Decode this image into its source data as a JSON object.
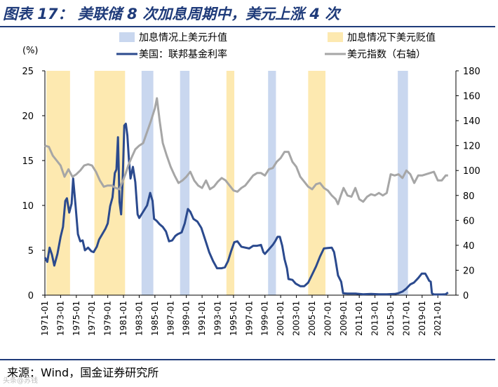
{
  "title": "图表 17： 美联储 8 次加息周期中，美元上涨 4 次",
  "source": "来源：Wind，国金证券研究所",
  "watermark": "头条@苏钱",
  "colors": {
    "title": "#1f3b7a",
    "rate": "#2b4a8e",
    "dxy": "#a6a6a6",
    "band_up": "#c9d7ef",
    "band_down": "#fde9b0"
  },
  "chart_data": {
    "type": "line",
    "left_unit_label": "(%)",
    "y_left": {
      "min": 0,
      "max": 25,
      "ticks": [
        0,
        5,
        10,
        15,
        20,
        25
      ]
    },
    "y_right": {
      "min": 0,
      "max": 180,
      "ticks": [
        0,
        20,
        40,
        60,
        80,
        100,
        120,
        140,
        160,
        180
      ]
    },
    "x_range": [
      1971.0,
      2023.3
    ],
    "x_tick_labels": [
      "1971-01",
      "1973-01",
      "1975-01",
      "1977-01",
      "1979-01",
      "1981-01",
      "1983-01",
      "1985-01",
      "1987-01",
      "1989-01",
      "1991-01",
      "1993-01",
      "1995-01",
      "1997-01",
      "1999-01",
      "2001-01",
      "2003-01",
      "2005-01",
      "2007-01",
      "2009-01",
      "2011-01",
      "2013-01",
      "2015-01",
      "2017-01",
      "2019-01",
      "2021-01"
    ],
    "legend": [
      {
        "key": "band_up",
        "label": "加息情况上美元升值",
        "kind": "band"
      },
      {
        "key": "band_down",
        "label": "加息情况下美元贬值",
        "kind": "band"
      },
      {
        "key": "rate",
        "label": "美国：联邦基金利率",
        "kind": "line"
      },
      {
        "key": "dxy",
        "label": "美元指数（右轴）",
        "kind": "line"
      }
    ],
    "bands_up": [
      [
        1983.3,
        1984.8
      ],
      [
        1988.2,
        1989.4
      ],
      [
        1999.4,
        2000.4
      ],
      [
        2015.9,
        2017.2
      ]
    ],
    "bands_down": [
      [
        1971.2,
        1974.2
      ],
      [
        1977.3,
        1981.2
      ],
      [
        1994.1,
        1995.1
      ],
      [
        2004.5,
        2006.7
      ]
    ],
    "series": [
      {
        "name": "美国：联邦基金利率",
        "axis": "left",
        "x": [
          1971.0,
          1971.3,
          1971.6,
          1971.9,
          1972.2,
          1972.6,
          1973.0,
          1973.3,
          1973.6,
          1973.8,
          1974.1,
          1974.4,
          1974.6,
          1974.9,
          1975.2,
          1975.5,
          1975.8,
          1976.1,
          1976.5,
          1976.9,
          1977.2,
          1977.6,
          1977.9,
          1978.3,
          1978.7,
          1979.0,
          1979.3,
          1979.6,
          1979.9,
          1980.1,
          1980.3,
          1980.5,
          1980.7,
          1980.9,
          1981.1,
          1981.3,
          1981.5,
          1981.7,
          1981.9,
          1982.2,
          1982.5,
          1982.8,
          1983.0,
          1983.5,
          1984.0,
          1984.4,
          1984.7,
          1984.9,
          1985.2,
          1985.6,
          1986.0,
          1986.4,
          1986.8,
          1987.2,
          1987.6,
          1987.9,
          1988.4,
          1988.8,
          1989.2,
          1989.5,
          1989.9,
          1990.4,
          1990.9,
          1991.5,
          1991.9,
          1992.4,
          1992.9,
          1993.5,
          1993.9,
          1994.3,
          1994.7,
          1995.1,
          1995.5,
          1996.0,
          1996.5,
          1997.0,
          1997.5,
          1998.0,
          1998.5,
          1998.8,
          1999.0,
          1999.5,
          2000.0,
          2000.3,
          2000.6,
          2000.9,
          2001.2,
          2001.5,
          2001.8,
          2002.0,
          2002.5,
          2002.9,
          2003.5,
          2004.0,
          2004.5,
          2005.0,
          2005.5,
          2006.0,
          2006.5,
          2007.0,
          2007.5,
          2007.8,
          2008.0,
          2008.3,
          2008.7,
          2008.95,
          2009.5,
          2010.5,
          2011.5,
          2012.5,
          2013.5,
          2014.5,
          2015.5,
          2015.95,
          2016.5,
          2016.95,
          2017.5,
          2017.95,
          2018.5,
          2018.95,
          2019.4,
          2019.6,
          2019.9,
          2020.1,
          2020.25,
          2020.5,
          2021.5,
          2022.0,
          2022.3
        ],
        "y": [
          4.2,
          3.7,
          5.3,
          4.5,
          3.3,
          4.6,
          6.5,
          7.6,
          10.5,
          10.8,
          9.2,
          10.2,
          13.0,
          10.0,
          6.8,
          6.0,
          6.1,
          5.0,
          5.3,
          4.9,
          4.8,
          5.4,
          6.2,
          6.8,
          7.4,
          8.0,
          9.9,
          10.9,
          13.6,
          14.0,
          17.6,
          10.4,
          9.0,
          12.8,
          18.9,
          19.1,
          17.8,
          15.0,
          13.0,
          14.3,
          12.6,
          9.0,
          8.6,
          9.3,
          10.0,
          11.4,
          10.5,
          8.5,
          8.3,
          7.9,
          7.6,
          7.1,
          6.0,
          6.1,
          6.6,
          6.8,
          7.0,
          8.0,
          9.6,
          9.3,
          8.5,
          8.2,
          7.5,
          5.9,
          4.8,
          3.8,
          3.0,
          3.0,
          3.1,
          3.8,
          4.9,
          5.9,
          6.0,
          5.4,
          5.3,
          5.2,
          5.5,
          5.5,
          5.6,
          4.8,
          4.6,
          5.1,
          5.6,
          6.0,
          6.5,
          6.5,
          5.5,
          4.0,
          3.0,
          1.8,
          1.7,
          1.3,
          1.0,
          1.0,
          1.4,
          2.3,
          3.2,
          4.3,
          5.2,
          5.25,
          5.3,
          4.8,
          3.8,
          2.2,
          1.5,
          0.2,
          0.18,
          0.18,
          0.1,
          0.14,
          0.1,
          0.09,
          0.13,
          0.2,
          0.4,
          0.7,
          1.2,
          1.4,
          1.9,
          2.4,
          2.4,
          2.1,
          1.6,
          1.5,
          0.2,
          0.08,
          0.08,
          0.1,
          0.3
        ]
      },
      {
        "name": "美元指数（右轴）",
        "axis": "right",
        "x": [
          1971.0,
          1971.5,
          1972.0,
          1972.5,
          1973.0,
          1973.5,
          1974.0,
          1974.5,
          1975.0,
          1975.5,
          1976.0,
          1976.5,
          1977.0,
          1977.5,
          1978.0,
          1978.5,
          1979.0,
          1979.5,
          1980.0,
          1980.5,
          1981.0,
          1981.3,
          1981.6,
          1982.0,
          1982.5,
          1983.0,
          1983.5,
          1984.0,
          1984.5,
          1985.0,
          1985.25,
          1985.6,
          1986.0,
          1986.5,
          1987.0,
          1987.5,
          1988.0,
          1988.5,
          1989.0,
          1989.5,
          1990.0,
          1990.5,
          1991.0,
          1991.5,
          1992.0,
          1992.5,
          1993.0,
          1993.5,
          1994.0,
          1994.5,
          1995.0,
          1995.5,
          1996.0,
          1996.5,
          1997.0,
          1997.5,
          1998.0,
          1998.5,
          1999.0,
          1999.5,
          2000.0,
          2000.5,
          2001.0,
          2001.5,
          2002.0,
          2002.5,
          2003.0,
          2003.5,
          2004.0,
          2004.5,
          2005.0,
          2005.5,
          2006.0,
          2006.5,
          2007.0,
          2007.5,
          2008.0,
          2008.3,
          2008.6,
          2009.0,
          2009.5,
          2010.0,
          2010.5,
          2011.0,
          2011.5,
          2012.0,
          2012.5,
          2013.0,
          2013.5,
          2014.0,
          2014.5,
          2015.0,
          2015.5,
          2016.0,
          2016.5,
          2017.0,
          2017.5,
          2018.0,
          2018.5,
          2019.0,
          2019.5,
          2020.0,
          2020.5,
          2021.0,
          2021.5,
          2022.0,
          2022.3
        ],
        "y": [
          120,
          119,
          112,
          108,
          104,
          95,
          101,
          95,
          97,
          100,
          104,
          105,
          104,
          99,
          92,
          87,
          88,
          88,
          86,
          85,
          93,
          98,
          104,
          110,
          117,
          120,
          122,
          131,
          140,
          150,
          158,
          140,
          122,
          112,
          103,
          96,
          90,
          92,
          95,
          99,
          92,
          88,
          86,
          92,
          85,
          87,
          91,
          94,
          92,
          88,
          84,
          83,
          86,
          88,
          92,
          96,
          98,
          98,
          96,
          101,
          102,
          107,
          110,
          115,
          115,
          107,
          103,
          95,
          91,
          87,
          85,
          89,
          90,
          86,
          84,
          80,
          77,
          73,
          79,
          86,
          80,
          79,
          86,
          77,
          75,
          79,
          81,
          80,
          82,
          80,
          82,
          97,
          96,
          97,
          94,
          100,
          97,
          90,
          96,
          96,
          97,
          98,
          99,
          92,
          92,
          96,
          96
        ]
      }
    ]
  }
}
